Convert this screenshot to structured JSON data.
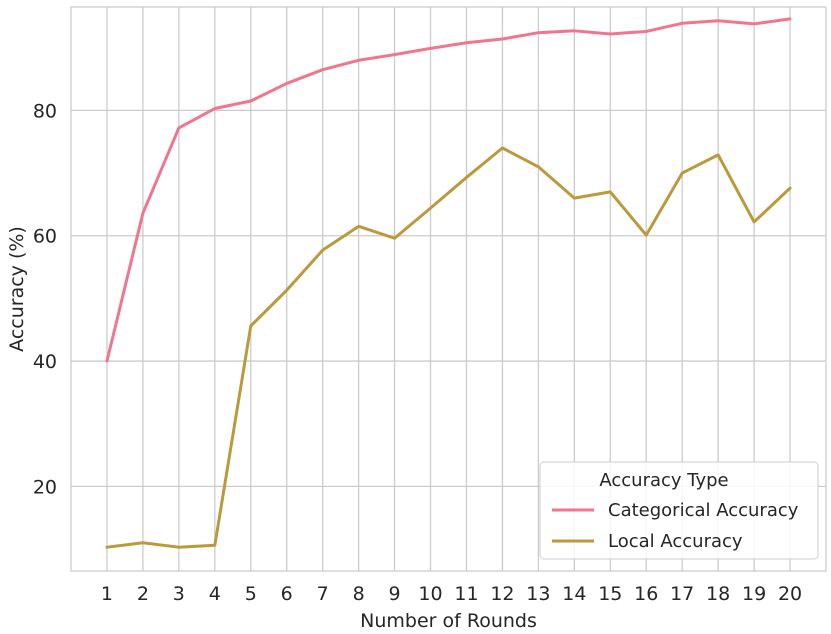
{
  "chart_data": {
    "type": "line",
    "title": "",
    "xlabel": "Number of Rounds",
    "ylabel": "Accuracy (%)",
    "x": [
      1,
      2,
      3,
      4,
      5,
      6,
      7,
      8,
      9,
      10,
      11,
      12,
      13,
      14,
      15,
      16,
      17,
      18,
      19,
      20
    ],
    "xlim": [
      0,
      21
    ],
    "ylim": [
      6.5,
      96.5
    ],
    "yticks": [
      20,
      40,
      60,
      80
    ],
    "grid": true,
    "legend": {
      "title": "Accuracy Type",
      "placement": "lower-right"
    },
    "series": [
      {
        "name": "Categorical Accuracy",
        "color": "#f07590",
        "values": [
          40.0,
          63.6,
          77.2,
          80.3,
          81.5,
          84.3,
          86.5,
          88.0,
          88.9,
          89.9,
          90.8,
          91.4,
          92.4,
          92.7,
          92.2,
          92.6,
          93.9,
          94.3,
          93.8,
          94.6
        ]
      },
      {
        "name": "Local Accuracy",
        "color": "#bb9a3c",
        "values": [
          10.3,
          11.0,
          10.3,
          10.6,
          45.6,
          51.3,
          57.7,
          61.5,
          59.6,
          64.4,
          69.3,
          74.0,
          71.0,
          66.0,
          67.0,
          60.1,
          70.0,
          72.9,
          62.2,
          67.6
        ]
      }
    ]
  }
}
